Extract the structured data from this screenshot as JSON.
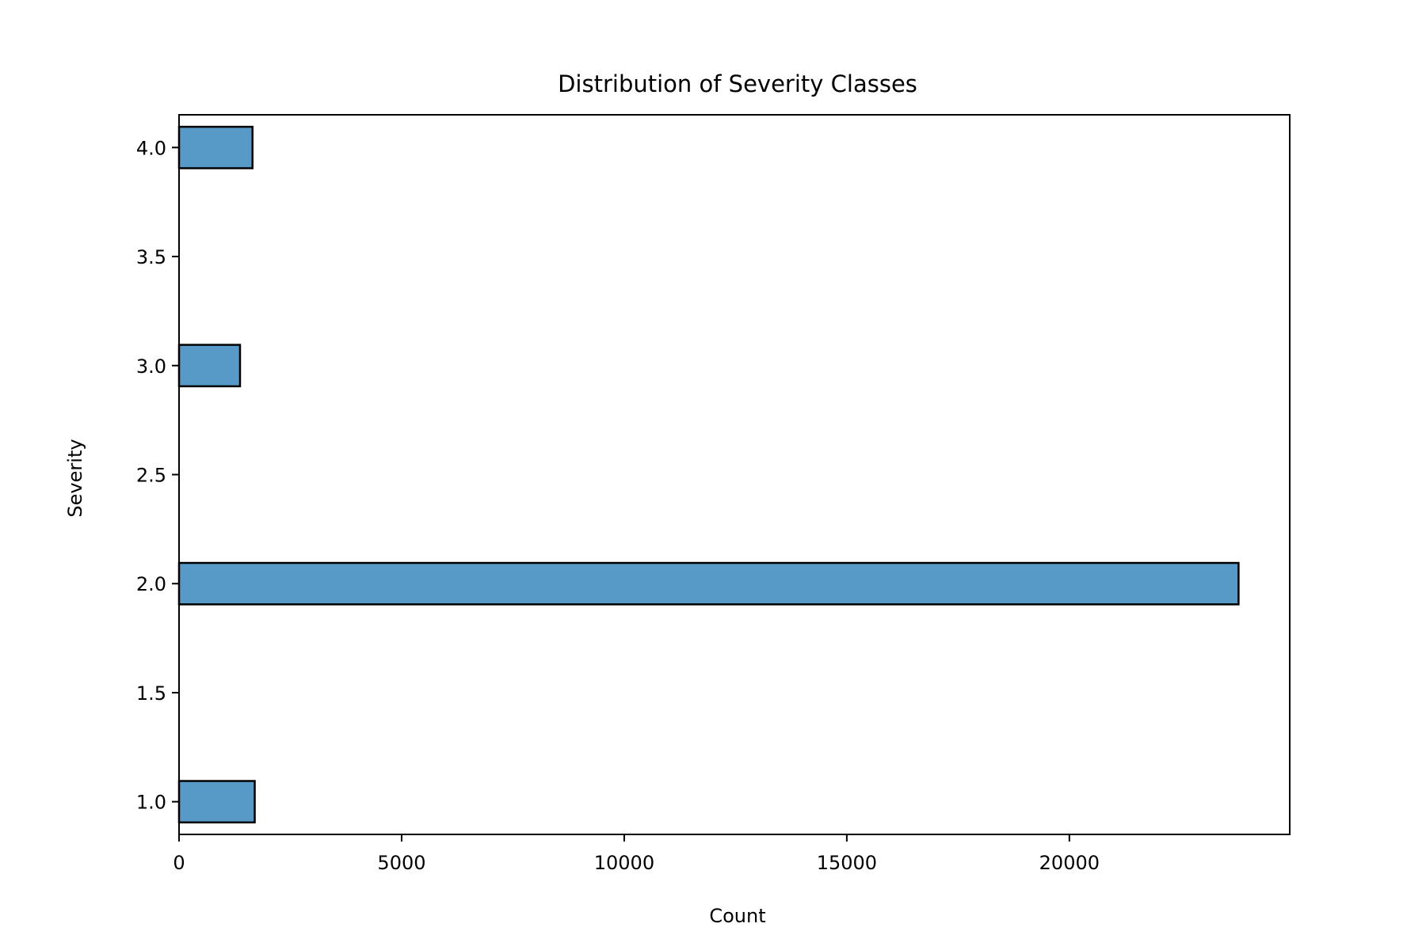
{
  "chart_data": {
    "type": "bar",
    "orientation": "horizontal",
    "title": "Distribution of Severity Classes",
    "xlabel": "Count",
    "ylabel": "Severity",
    "xlim": [
      0,
      24950
    ],
    "ylim": [
      0.85,
      4.15
    ],
    "bar_width": 0.19,
    "bar_color": "#5799c7",
    "edge_color": "#000000",
    "grid": false,
    "xticks": [
      {
        "value": 0,
        "label": "0"
      },
      {
        "value": 5000,
        "label": "5000"
      },
      {
        "value": 10000,
        "label": "10000"
      },
      {
        "value": 15000,
        "label": "15000"
      },
      {
        "value": 20000,
        "label": "20000"
      }
    ],
    "yticks": [
      {
        "value": 1.0,
        "label": "1.0"
      },
      {
        "value": 1.5,
        "label": "1.5"
      },
      {
        "value": 2.0,
        "label": "2.0"
      },
      {
        "value": 2.5,
        "label": "2.5"
      },
      {
        "value": 3.0,
        "label": "3.0"
      },
      {
        "value": 3.5,
        "label": "3.5"
      },
      {
        "value": 4.0,
        "label": "4.0"
      }
    ],
    "bars": [
      {
        "severity": 1,
        "count": 1700
      },
      {
        "severity": 2,
        "count": 23800
      },
      {
        "severity": 3,
        "count": 1370
      },
      {
        "severity": 4,
        "count": 1650
      }
    ]
  }
}
